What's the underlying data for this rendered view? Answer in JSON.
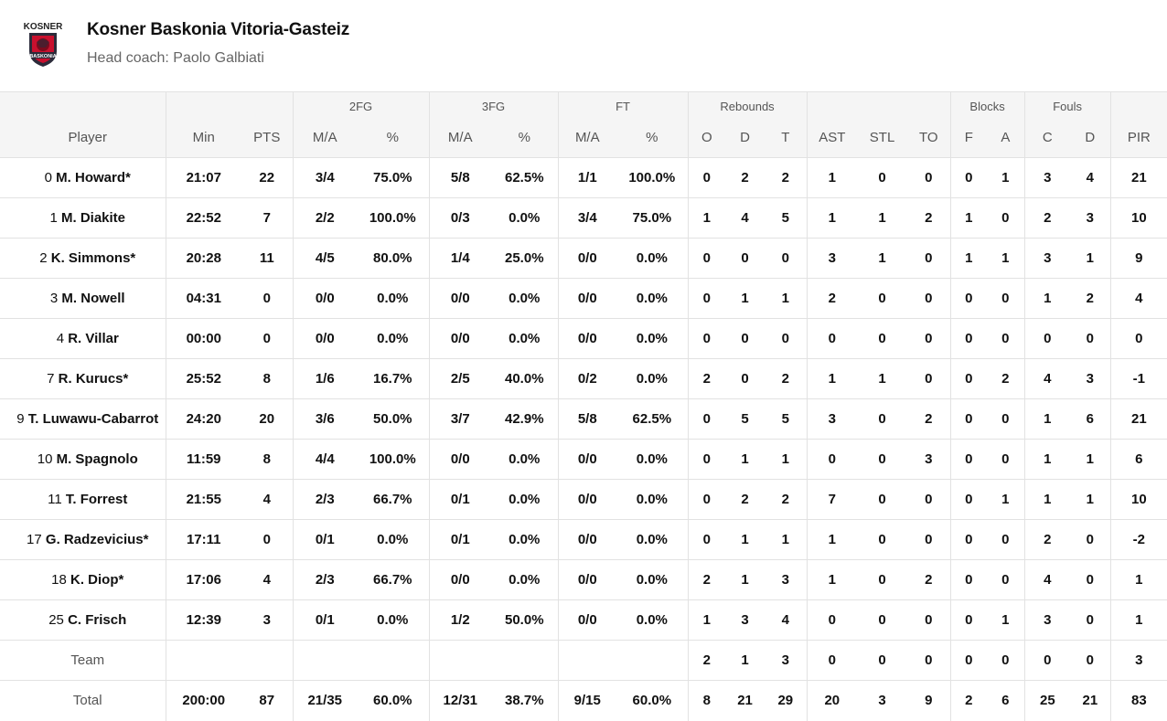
{
  "team": {
    "logo_icon": "baskonia-logo-icon",
    "logo_text": "KOSNER",
    "logo_badge": "BASKONIA",
    "name": "Kosner Baskonia Vitoria-Gasteiz",
    "coach": "Head coach: Paolo Galbiati"
  },
  "groups": {
    "fg2": "2FG",
    "fg3": "3FG",
    "ft": "FT",
    "rebounds": "Rebounds",
    "blocks": "Blocks",
    "fouls": "Fouls"
  },
  "columns": [
    "Player",
    "Min",
    "PTS",
    "M/A",
    "%",
    "M/A",
    "%",
    "M/A",
    "%",
    "O",
    "D",
    "T",
    "AST",
    "STL",
    "TO",
    "F",
    "A",
    "C",
    "D",
    "PIR"
  ],
  "players": [
    {
      "num": "0",
      "name": "M. Howard*",
      "stats": [
        "21:07",
        "22",
        "3/4",
        "75.0%",
        "5/8",
        "62.5%",
        "1/1",
        "100.0%",
        "0",
        "2",
        "2",
        "1",
        "0",
        "0",
        "0",
        "1",
        "3",
        "4",
        "21"
      ]
    },
    {
      "num": "1",
      "name": "M. Diakite",
      "stats": [
        "22:52",
        "7",
        "2/2",
        "100.0%",
        "0/3",
        "0.0%",
        "3/4",
        "75.0%",
        "1",
        "4",
        "5",
        "1",
        "1",
        "2",
        "1",
        "0",
        "2",
        "3",
        "10"
      ]
    },
    {
      "num": "2",
      "name": "K. Simmons*",
      "stats": [
        "20:28",
        "11",
        "4/5",
        "80.0%",
        "1/4",
        "25.0%",
        "0/0",
        "0.0%",
        "0",
        "0",
        "0",
        "3",
        "1",
        "0",
        "1",
        "1",
        "3",
        "1",
        "9"
      ]
    },
    {
      "num": "3",
      "name": "M. Nowell",
      "stats": [
        "04:31",
        "0",
        "0/0",
        "0.0%",
        "0/0",
        "0.0%",
        "0/0",
        "0.0%",
        "0",
        "1",
        "1",
        "2",
        "0",
        "0",
        "0",
        "0",
        "1",
        "2",
        "4"
      ]
    },
    {
      "num": "4",
      "name": "R. Villar",
      "stats": [
        "00:00",
        "0",
        "0/0",
        "0.0%",
        "0/0",
        "0.0%",
        "0/0",
        "0.0%",
        "0",
        "0",
        "0",
        "0",
        "0",
        "0",
        "0",
        "0",
        "0",
        "0",
        "0"
      ]
    },
    {
      "num": "7",
      "name": "R. Kurucs*",
      "stats": [
        "25:52",
        "8",
        "1/6",
        "16.7%",
        "2/5",
        "40.0%",
        "0/2",
        "0.0%",
        "2",
        "0",
        "2",
        "1",
        "1",
        "0",
        "0",
        "2",
        "4",
        "3",
        "-1"
      ]
    },
    {
      "num": "9",
      "name": "T. Luwawu-Cabarrot",
      "stats": [
        "24:20",
        "20",
        "3/6",
        "50.0%",
        "3/7",
        "42.9%",
        "5/8",
        "62.5%",
        "0",
        "5",
        "5",
        "3",
        "0",
        "2",
        "0",
        "0",
        "1",
        "6",
        "21"
      ]
    },
    {
      "num": "10",
      "name": "M. Spagnolo",
      "stats": [
        "11:59",
        "8",
        "4/4",
        "100.0%",
        "0/0",
        "0.0%",
        "0/0",
        "0.0%",
        "0",
        "1",
        "1",
        "0",
        "0",
        "3",
        "0",
        "0",
        "1",
        "1",
        "6"
      ]
    },
    {
      "num": "11",
      "name": "T. Forrest",
      "stats": [
        "21:55",
        "4",
        "2/3",
        "66.7%",
        "0/1",
        "0.0%",
        "0/0",
        "0.0%",
        "0",
        "2",
        "2",
        "7",
        "0",
        "0",
        "0",
        "1",
        "1",
        "1",
        "10"
      ]
    },
    {
      "num": "17",
      "name": "G. Radzevicius*",
      "stats": [
        "17:11",
        "0",
        "0/1",
        "0.0%",
        "0/1",
        "0.0%",
        "0/0",
        "0.0%",
        "0",
        "1",
        "1",
        "1",
        "0",
        "0",
        "0",
        "0",
        "2",
        "0",
        "-2"
      ]
    },
    {
      "num": "18",
      "name": "K. Diop*",
      "stats": [
        "17:06",
        "4",
        "2/3",
        "66.7%",
        "0/0",
        "0.0%",
        "0/0",
        "0.0%",
        "2",
        "1",
        "3",
        "1",
        "0",
        "2",
        "0",
        "0",
        "4",
        "0",
        "1"
      ]
    },
    {
      "num": "25",
      "name": "C. Frisch",
      "stats": [
        "12:39",
        "3",
        "0/1",
        "0.0%",
        "1/2",
        "50.0%",
        "0/0",
        "0.0%",
        "1",
        "3",
        "4",
        "0",
        "0",
        "0",
        "0",
        "1",
        "3",
        "0",
        "1"
      ]
    }
  ],
  "team_row": {
    "label": "Team",
    "stats": [
      "",
      "",
      "",
      "",
      "",
      "",
      "",
      "",
      "2",
      "1",
      "3",
      "0",
      "0",
      "0",
      "0",
      "0",
      "0",
      "0",
      "3"
    ]
  },
  "total_row": {
    "label": "Total",
    "stats": [
      "200:00",
      "87",
      "21/35",
      "60.0%",
      "12/31",
      "38.7%",
      "9/15",
      "60.0%",
      "8",
      "21",
      "29",
      "20",
      "3",
      "9",
      "2",
      "6",
      "25",
      "21",
      "83"
    ]
  }
}
